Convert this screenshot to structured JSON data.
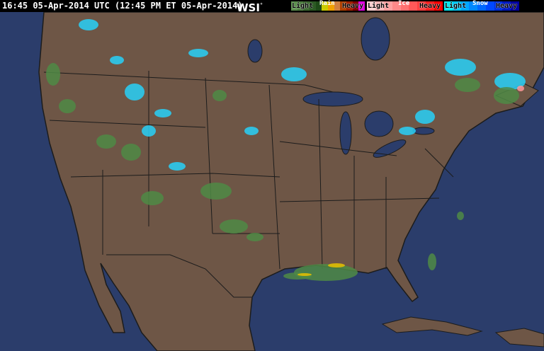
{
  "header": {
    "timestamp": "16:45 05-Apr-2014 UTC (12:45 PM ET 05-Apr-2014)",
    "logo": "WSI",
    "logo_mark": "°"
  },
  "legend": [
    {
      "title": "Rain",
      "light": "Light",
      "heavy": "Heavy",
      "colors": [
        "#5c8f4e",
        "#4f8042",
        "#3d6b32",
        "#2c5a24",
        "#1e4a18",
        "#cccc00",
        "#f0a000",
        "#d08040",
        "#b04000",
        "#a02000",
        "#800000",
        "#e000e0"
      ]
    },
    {
      "title": "Ice",
      "light": "Light",
      "heavy": "Heavy",
      "colors": [
        "#ffd0d0",
        "#ffb8b8",
        "#ffa0a0",
        "#ff8888",
        "#ff7070",
        "#ff5858",
        "#ff4040",
        "#ff2020",
        "#ff0000"
      ]
    },
    {
      "title": "Snow",
      "light": "Light",
      "heavy": "Heavy",
      "colors": [
        "#00e8f0",
        "#00c8f8",
        "#00a8ff",
        "#0088ff",
        "#0068ff",
        "#0048ff",
        "#0030e0",
        "#0018c0",
        "#0000a0"
      ]
    }
  ],
  "map": {
    "colors": {
      "land": "#6e5646",
      "water": "#2b3d6b",
      "border": "#1c1c1c",
      "rain": "#4f8a45",
      "snow": "#28d0f8",
      "rain_heavy": "#e8c000",
      "ice": "#ff9898"
    }
  }
}
